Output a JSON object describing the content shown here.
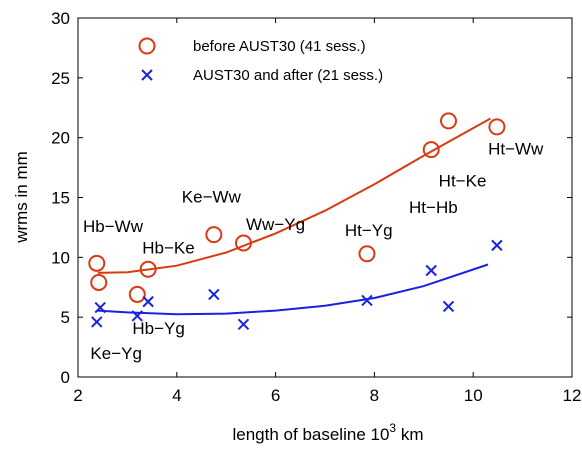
{
  "chart_data": {
    "type": "scatter",
    "title": "",
    "xlabel": "length of baseline 10",
    "xlabel_sup": "3",
    "xlabel_suffix": " km",
    "ylabel": "wrms in mm",
    "xlim": [
      2,
      12
    ],
    "ylim": [
      0,
      30
    ],
    "xticks": [
      2,
      4,
      6,
      8,
      10,
      12
    ],
    "yticks": [
      0,
      5,
      10,
      15,
      20,
      25,
      30
    ],
    "grid": false,
    "legend_position": "top-left",
    "series": [
      {
        "name": "before AUST30 (41 sess.)",
        "marker": "circle",
        "color": "#d93a12",
        "points": [
          {
            "x": 2.38,
            "y": 9.5
          },
          {
            "x": 2.42,
            "y": 7.9
          },
          {
            "x": 3.2,
            "y": 6.9
          },
          {
            "x": 3.42,
            "y": 9.0
          },
          {
            "x": 4.75,
            "y": 11.9
          },
          {
            "x": 5.35,
            "y": 11.2
          },
          {
            "x": 7.85,
            "y": 10.3
          },
          {
            "x": 9.15,
            "y": 19.0
          },
          {
            "x": 9.5,
            "y": 21.4
          },
          {
            "x": 10.48,
            "y": 20.9
          }
        ],
        "fit": [
          {
            "x": 2.4,
            "y": 8.7
          },
          {
            "x": 3.0,
            "y": 8.75
          },
          {
            "x": 4.0,
            "y": 9.3
          },
          {
            "x": 5.0,
            "y": 10.4
          },
          {
            "x": 6.0,
            "y": 12.0
          },
          {
            "x": 7.0,
            "y": 13.9
          },
          {
            "x": 8.0,
            "y": 16.1
          },
          {
            "x": 9.0,
            "y": 18.5
          },
          {
            "x": 10.0,
            "y": 20.8
          },
          {
            "x": 10.35,
            "y": 21.6
          }
        ]
      },
      {
        "name": "AUST30 and after (21 sess.)",
        "marker": "x",
        "color": "#1a22e0",
        "points": [
          {
            "x": 2.38,
            "y": 4.6
          },
          {
            "x": 2.45,
            "y": 5.8
          },
          {
            "x": 3.2,
            "y": 5.1
          },
          {
            "x": 3.42,
            "y": 6.3
          },
          {
            "x": 4.75,
            "y": 6.9
          },
          {
            "x": 5.35,
            "y": 4.4
          },
          {
            "x": 7.85,
            "y": 6.4
          },
          {
            "x": 9.15,
            "y": 8.9
          },
          {
            "x": 9.5,
            "y": 5.9
          },
          {
            "x": 10.48,
            "y": 11.0
          }
        ],
        "fit": [
          {
            "x": 2.4,
            "y": 5.55
          },
          {
            "x": 3.0,
            "y": 5.4
          },
          {
            "x": 4.0,
            "y": 5.25
          },
          {
            "x": 5.0,
            "y": 5.3
          },
          {
            "x": 6.0,
            "y": 5.55
          },
          {
            "x": 7.0,
            "y": 5.95
          },
          {
            "x": 8.0,
            "y": 6.6
          },
          {
            "x": 9.0,
            "y": 7.6
          },
          {
            "x": 10.3,
            "y": 9.4
          }
        ]
      }
    ],
    "annotations": [
      {
        "text": "Hb−Ww",
        "x": 2.0,
        "y": 12.1
      },
      {
        "text": "Ke−Ww",
        "x": 4.0,
        "y": 14.6
      },
      {
        "text": "Ww−Yg",
        "x": 5.3,
        "y": 12.3
      },
      {
        "text": "Hb−Ke",
        "x": 3.2,
        "y": 10.3
      },
      {
        "text": "Ht−Yg",
        "x": 7.3,
        "y": 11.8
      },
      {
        "text": "Ht−Hb",
        "x": 8.6,
        "y": 13.7
      },
      {
        "text": "Ht−Ke",
        "x": 9.2,
        "y": 15.9
      },
      {
        "text": "Ht−Ww",
        "x": 10.2,
        "y": 18.6
      },
      {
        "text": "Hb−Yg",
        "x": 3.0,
        "y": 3.6
      },
      {
        "text": "Ke−Yg",
        "x": 2.15,
        "y": 1.5
      }
    ]
  }
}
